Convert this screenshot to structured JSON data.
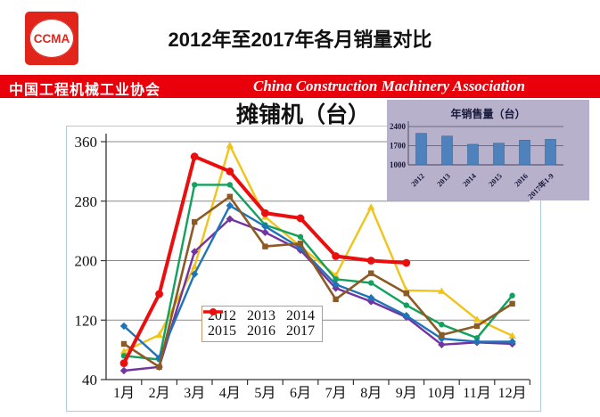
{
  "header": {
    "logo_text": "CCMA",
    "title": "2012年至2017年各月销量对比"
  },
  "banner": {
    "left": "中国工程机械工业协会",
    "right": "China Construction Machinery Association",
    "bg_color": "#e8000b"
  },
  "chart_data": [
    {
      "type": "line",
      "title": "摊铺机（台）",
      "x": [
        "1月",
        "2月",
        "3月",
        "4月",
        "5月",
        "6月",
        "7月",
        "8月",
        "9月",
        "10月",
        "11月",
        "12月"
      ],
      "ylim": [
        40,
        360
      ],
      "yticks": [
        40,
        120,
        200,
        280,
        360
      ],
      "grid": true,
      "legend_position": "inside-bottom-center",
      "legend_order": [
        [
          "2012",
          "2013",
          "2014"
        ],
        [
          "2015",
          "2016",
          "2017"
        ]
      ],
      "series": [
        {
          "name": "2012",
          "color": "#f0c419",
          "marker": "triangle",
          "line_width": 2.4,
          "values": [
            78,
            100,
            192,
            355,
            259,
            219,
            180,
            272,
            160,
            159,
            121,
            99
          ]
        },
        {
          "name": "2013",
          "color": "#12a15e",
          "marker": "circle",
          "line_width": 2.4,
          "values": [
            72,
            67,
            302,
            302,
            248,
            232,
            175,
            170,
            140,
            114,
            96,
            153
          ]
        },
        {
          "name": "2014",
          "color": "#7333a0",
          "marker": "diamond",
          "line_width": 2.4,
          "values": [
            52,
            57,
            212,
            256,
            238,
            214,
            163,
            145,
            124,
            87,
            90,
            88
          ]
        },
        {
          "name": "2015",
          "color": "#1f74b8",
          "marker": "diamond",
          "line_width": 2.4,
          "values": [
            112,
            69,
            182,
            274,
            246,
            217,
            168,
            150,
            126,
            95,
            91,
            91
          ]
        },
        {
          "name": "2016",
          "color": "#8c5a24",
          "marker": "square",
          "line_width": 2.6,
          "values": [
            88,
            57,
            252,
            286,
            219,
            223,
            148,
            183,
            156,
            100,
            112,
            142
          ]
        },
        {
          "name": "2017",
          "color": "#ea0e0e",
          "marker": "circle",
          "line_width": 4,
          "values": [
            62,
            155,
            340,
            320,
            264,
            257,
            206,
            200,
            197,
            null,
            null,
            null
          ]
        }
      ]
    },
    {
      "type": "bar",
      "title": "年销售量（台）",
      "categories": [
        "2012",
        "2013",
        "2014",
        "2015",
        "2016",
        "2017年1-9"
      ],
      "values": [
        2150,
        2050,
        1750,
        1790,
        1900,
        1930
      ],
      "ylim": [
        1000,
        2400
      ],
      "yticks": [
        1000,
        1700,
        2400
      ],
      "bar_color": "#4f81bd",
      "panel_bg": "#b7b1cc"
    }
  ]
}
